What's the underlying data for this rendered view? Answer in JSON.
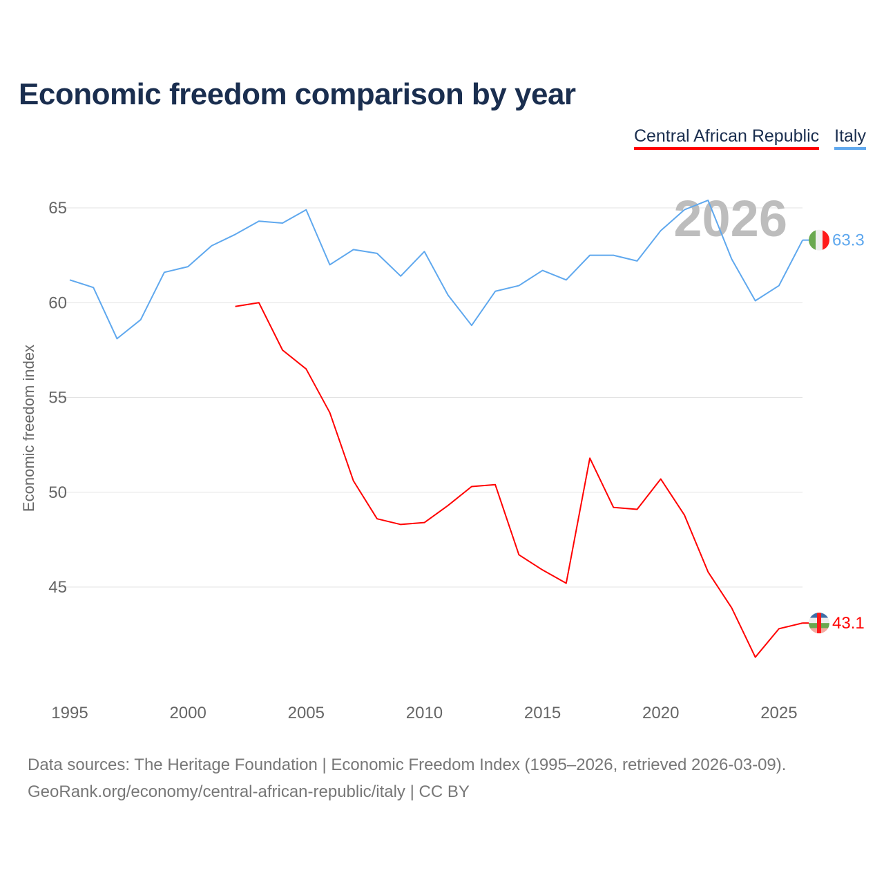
{
  "chart_data": {
    "type": "line",
    "title": "Economic freedom comparison by year",
    "xlabel": "",
    "ylabel": "Economic freedom index",
    "xlim": [
      1995,
      2026
    ],
    "ylim": [
      40,
      65
    ],
    "x_ticks": [
      "1995",
      "2000",
      "2005",
      "2010",
      "2015",
      "2020",
      "2025"
    ],
    "y_ticks": [
      "45",
      "50",
      "55",
      "60",
      "65"
    ],
    "grid": true,
    "legend_position": "top-right",
    "year_watermark": "2026",
    "series": [
      {
        "name": "Central African Republic",
        "color": "#ff0000",
        "end_label": "43.1",
        "x": [
          2002,
          2003,
          2004,
          2005,
          2006,
          2007,
          2008,
          2009,
          2010,
          2011,
          2012,
          2013,
          2014,
          2015,
          2016,
          2017,
          2018,
          2019,
          2020,
          2021,
          2022,
          2023,
          2024,
          2025,
          2026
        ],
        "values": [
          59.8,
          60.0,
          57.5,
          56.5,
          54.2,
          50.6,
          48.6,
          48.3,
          48.4,
          49.3,
          50.3,
          50.4,
          46.7,
          45.9,
          45.2,
          51.8,
          49.2,
          49.1,
          50.7,
          48.8,
          45.8,
          43.9,
          41.3,
          42.8,
          43.1
        ]
      },
      {
        "name": "Italy",
        "color": "#5fa8ee",
        "end_label": "63.3",
        "x": [
          1995,
          1996,
          1997,
          1998,
          1999,
          2000,
          2001,
          2002,
          2003,
          2004,
          2005,
          2006,
          2007,
          2008,
          2009,
          2010,
          2011,
          2012,
          2013,
          2014,
          2015,
          2016,
          2017,
          2018,
          2019,
          2020,
          2021,
          2022,
          2023,
          2024,
          2025,
          2026
        ],
        "values": [
          61.2,
          60.8,
          58.1,
          59.1,
          61.6,
          61.9,
          63.0,
          63.6,
          64.3,
          64.2,
          64.9,
          62.0,
          62.8,
          62.6,
          61.4,
          62.7,
          60.4,
          58.8,
          60.6,
          60.9,
          61.7,
          61.2,
          62.5,
          62.5,
          62.2,
          63.8,
          64.9,
          65.4,
          62.3,
          60.1,
          60.9,
          63.3
        ]
      }
    ]
  },
  "source": {
    "line1": "Data sources: The Heritage Foundation | Economic Freedom Index (1995–2026, retrieved 2026-03-09).",
    "line2": "GeoRank.org/economy/central-african-republic/italy | CC BY"
  }
}
